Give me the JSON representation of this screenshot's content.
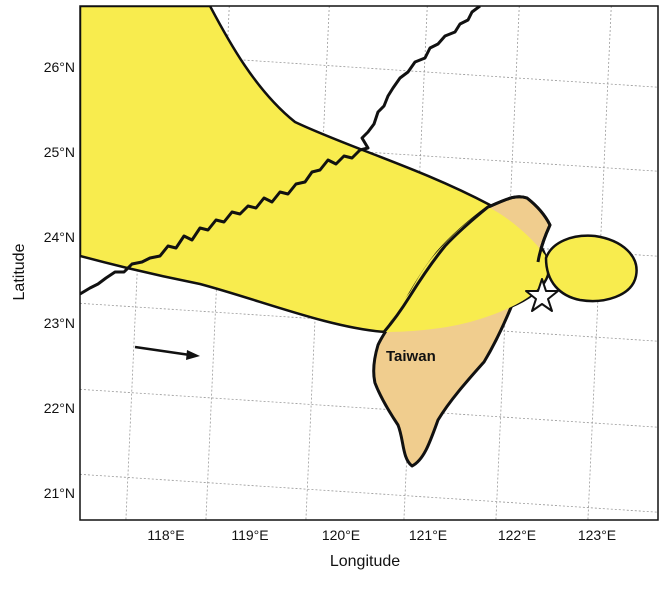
{
  "axes": {
    "xlabel": "Longitude",
    "ylabel": "Latitude",
    "lon_ticks": [
      "118°E",
      "119°E",
      "120°E",
      "121°E",
      "122°E",
      "123°E"
    ],
    "lat_ticks": [
      "21°N",
      "22°N",
      "23°N",
      "24°N",
      "25°N",
      "26°N"
    ]
  },
  "labels": {
    "island": "Taiwan"
  },
  "colors": {
    "shaded_region": "#f8ec4e",
    "land": "#f0cd8e",
    "outline": "#111111",
    "grid": "#9a9a9a"
  },
  "markers": {
    "star": "star-marker",
    "arrow": "direction-arrow"
  }
}
